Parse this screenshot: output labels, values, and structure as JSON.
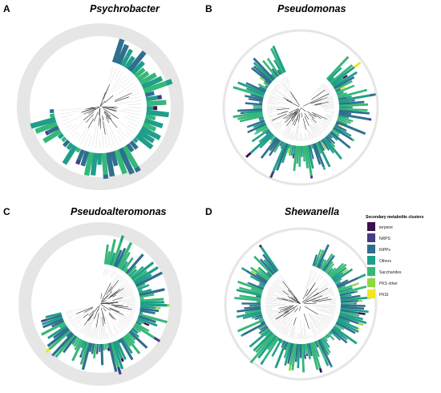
{
  "figure": {
    "panels": [
      {
        "letter": "A",
        "title": "Psychrobacter"
      },
      {
        "letter": "B",
        "title": "Pseudomonas"
      },
      {
        "letter": "C",
        "title": "Pseudoalteromonas"
      },
      {
        "letter": "D",
        "title": "Shewanella"
      }
    ],
    "legend": {
      "title": "Secondary metabolite clusters",
      "items": [
        {
          "label": "terpene",
          "color": "#3b0f4f"
        },
        {
          "label": "NRPS",
          "color": "#433e85"
        },
        {
          "label": "RiPPs",
          "color": "#2e6f8e"
        },
        {
          "label": "Others",
          "color": "#1f9e89"
        },
        {
          "label": "Saccharides",
          "color": "#35b779"
        },
        {
          "label": "PKS other",
          "color": "#8fd744"
        },
        {
          "label": "PKSI",
          "color": "#f3e51e"
        }
      ]
    }
  }
}
